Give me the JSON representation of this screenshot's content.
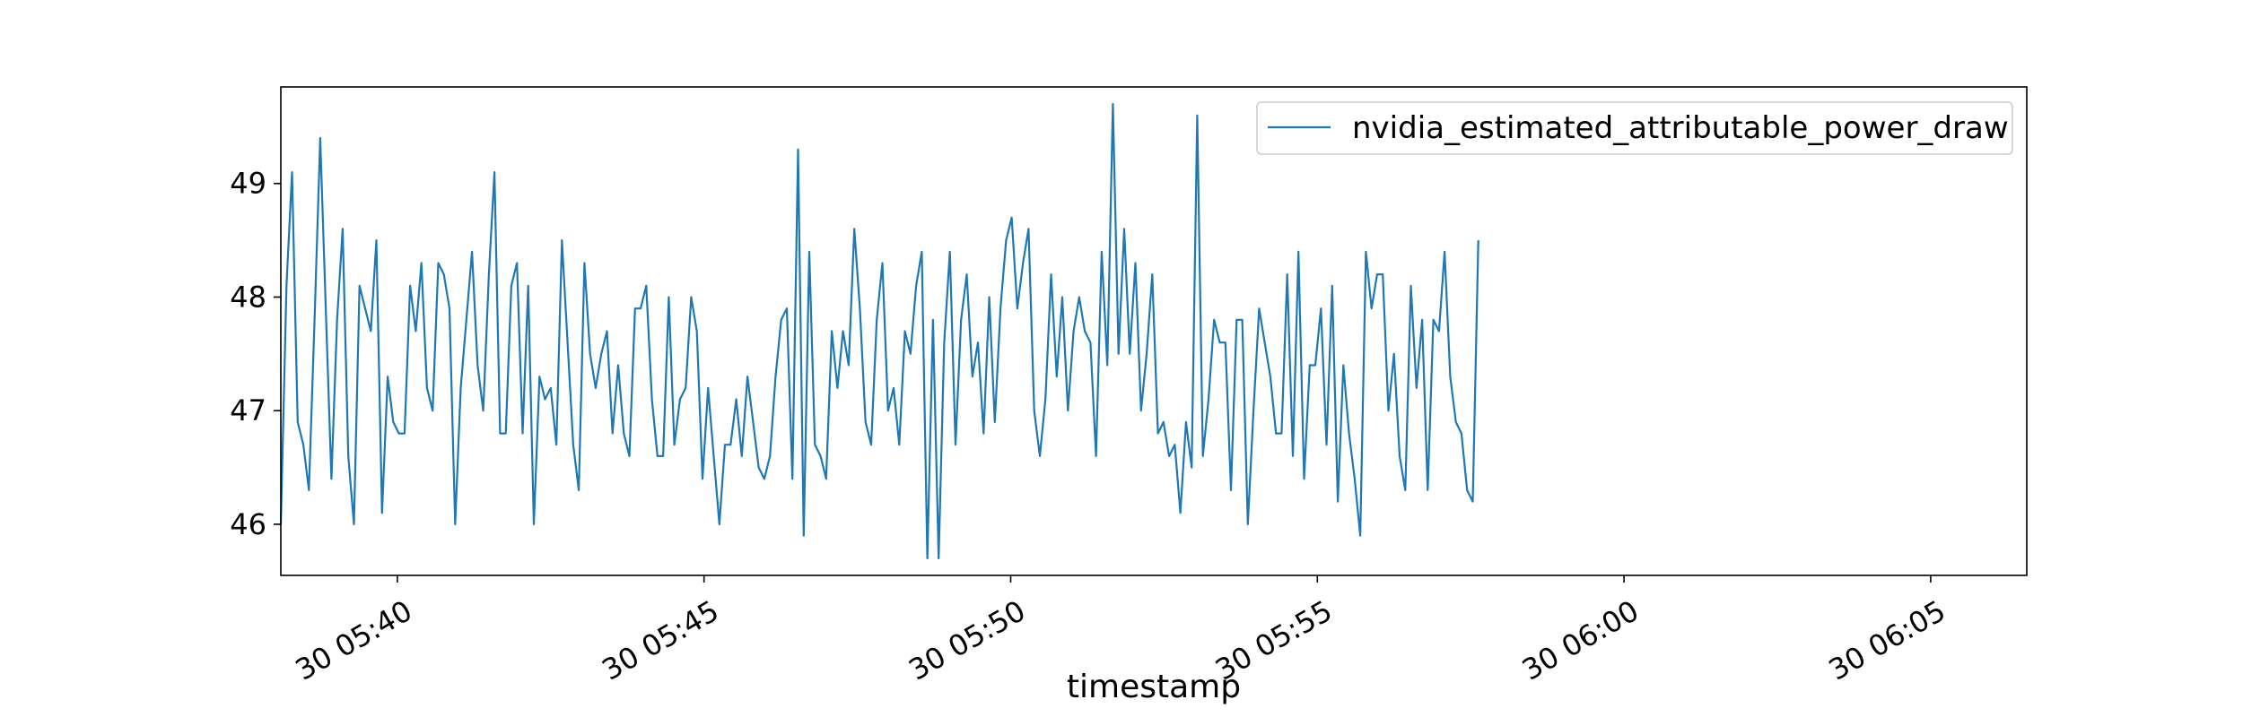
{
  "chart_data": {
    "type": "line",
    "title": "",
    "xlabel": "timestamp",
    "ylabel": "",
    "legend_position": "top-right",
    "grid": false,
    "xlim": [
      "05:38:06",
      "06:06:34"
    ],
    "ylim": [
      45.55,
      49.85
    ],
    "x_ticks": [
      {
        "time": "05:40:00",
        "label": "30 05:40"
      },
      {
        "time": "05:45:00",
        "label": "30 05:45"
      },
      {
        "time": "05:50:00",
        "label": "30 05:50"
      },
      {
        "time": "05:55:00",
        "label": "30 05:55"
      },
      {
        "time": "06:00:00",
        "label": "30 06:00"
      },
      {
        "time": "06:05:00",
        "label": "30 06:05"
      }
    ],
    "y_ticks": [
      46,
      47,
      48,
      49
    ],
    "series": [
      {
        "name": "nvidia_estimated_attributable_power_draw",
        "color": "#1f77b4",
        "start_time": "05:38:06",
        "interval_seconds": 5.5,
        "values": [
          46.0,
          48.1,
          49.1,
          46.9,
          46.7,
          46.3,
          47.8,
          49.4,
          47.9,
          46.4,
          47.8,
          48.6,
          46.6,
          46.0,
          48.1,
          47.9,
          47.7,
          48.5,
          46.1,
          47.3,
          46.9,
          46.8,
          46.8,
          48.1,
          47.7,
          48.3,
          47.2,
          47.0,
          48.3,
          48.2,
          47.9,
          46.0,
          47.2,
          47.8,
          48.4,
          47.4,
          47.0,
          48.2,
          49.1,
          46.8,
          46.8,
          48.1,
          48.3,
          46.8,
          48.1,
          46.0,
          47.3,
          47.1,
          47.2,
          46.7,
          48.5,
          47.6,
          46.7,
          46.3,
          48.3,
          47.5,
          47.2,
          47.5,
          47.7,
          46.8,
          47.4,
          46.8,
          46.6,
          47.9,
          47.9,
          48.1,
          47.1,
          46.6,
          46.6,
          48.0,
          46.7,
          47.1,
          47.2,
          48.0,
          47.7,
          46.4,
          47.2,
          46.6,
          46.0,
          46.7,
          46.7,
          47.1,
          46.6,
          47.3,
          46.9,
          46.5,
          46.4,
          46.6,
          47.3,
          47.8,
          47.9,
          46.4,
          49.3,
          45.9,
          48.4,
          46.7,
          46.6,
          46.4,
          47.7,
          47.2,
          47.7,
          47.4,
          48.6,
          47.9,
          46.9,
          46.7,
          47.8,
          48.3,
          47.0,
          47.2,
          46.7,
          47.7,
          47.5,
          48.1,
          48.4,
          45.7,
          47.8,
          45.7,
          47.6,
          48.4,
          46.7,
          47.8,
          48.2,
          47.3,
          47.6,
          46.8,
          48.0,
          46.9,
          47.9,
          48.5,
          48.7,
          47.9,
          48.3,
          48.6,
          47.0,
          46.6,
          47.1,
          48.2,
          47.3,
          48.0,
          47.0,
          47.7,
          48.0,
          47.7,
          47.6,
          46.6,
          48.4,
          47.4,
          49.7,
          47.5,
          48.6,
          47.5,
          48.3,
          47.0,
          47.5,
          48.2,
          46.8,
          46.9,
          46.6,
          46.7,
          46.1,
          46.9,
          46.5,
          49.6,
          46.6,
          47.1,
          47.8,
          47.6,
          47.6,
          46.3,
          47.8,
          47.8,
          46.0,
          47.0,
          47.9,
          47.6,
          47.3,
          46.8,
          46.8,
          48.2,
          46.6,
          48.4,
          46.4,
          47.4,
          47.4,
          47.9,
          46.7,
          48.1,
          46.2,
          47.4,
          46.8,
          46.4,
          45.9,
          48.4,
          47.9,
          48.2,
          48.2,
          47.0,
          47.5,
          46.6,
          46.3,
          48.1,
          47.2,
          47.8,
          46.3,
          47.8,
          47.7,
          48.4,
          47.3,
          46.9,
          46.8,
          46.3,
          46.2,
          48.5
        ]
      }
    ]
  }
}
